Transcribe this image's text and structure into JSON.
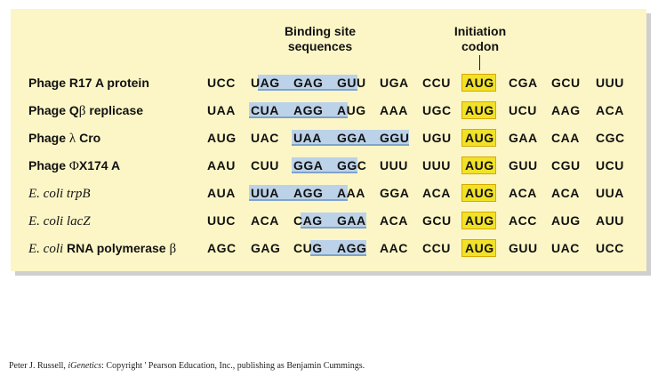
{
  "headers": {
    "binding_site": [
      "Binding site",
      "sequences"
    ],
    "initiation": [
      "Initiation",
      "codon"
    ]
  },
  "rows": [
    {
      "label_parts": [
        {
          "text": "Phage R17 A protein",
          "style": "bold"
        }
      ],
      "codons": [
        "UCC",
        "UAG",
        "GAG",
        "GUU",
        "UGA",
        "CCU",
        "AUG",
        "CGA",
        "GCU",
        "UUU"
      ],
      "binding": {
        "from_codon": 1,
        "from_char": 1,
        "to_codon": 3,
        "to_char": 2
      }
    },
    {
      "label_parts": [
        {
          "text": "Phage Q",
          "style": "bold"
        },
        {
          "text": "β",
          "style": "sym"
        },
        {
          "text": " replicase",
          "style": "bold"
        }
      ],
      "codons": [
        "UAA",
        "CUA",
        "AGG",
        "AUG",
        "AAA",
        "UGC",
        "AUG",
        "UCU",
        "AAG",
        "ACA"
      ],
      "binding": {
        "from_codon": 1,
        "from_char": 0,
        "to_codon": 3,
        "to_char": 1
      }
    },
    {
      "label_parts": [
        {
          "text": "Phage ",
          "style": "bold"
        },
        {
          "text": "λ",
          "style": "sym"
        },
        {
          "text": " Cro",
          "style": "bold"
        }
      ],
      "codons": [
        "AUG",
        "UAC",
        "UAA",
        "GGA",
        "GGU",
        "UGU",
        "AUG",
        "GAA",
        "CAA",
        "CGC"
      ],
      "binding": {
        "from_codon": 2,
        "from_char": 0,
        "to_codon": 4,
        "to_char": 3
      }
    },
    {
      "label_parts": [
        {
          "text": "Phage ",
          "style": "bold"
        },
        {
          "text": "Φ",
          "style": "sym"
        },
        {
          "text": "X174 A",
          "style": "bold"
        }
      ],
      "codons": [
        "AAU",
        "CUU",
        "GGA",
        "GGC",
        "UUU",
        "UUU",
        "AUG",
        "GUU",
        "CGU",
        "UCU"
      ],
      "binding": {
        "from_codon": 2,
        "from_char": 0,
        "to_codon": 3,
        "to_char": 2
      }
    },
    {
      "label_parts": [
        {
          "text": "E. coli trpB",
          "style": "ital"
        }
      ],
      "codons": [
        "AUA",
        "UUA",
        "AGG",
        "AAA",
        "GGA",
        "ACA",
        "AUG",
        "ACA",
        "ACA",
        "UUA"
      ],
      "binding": {
        "from_codon": 1,
        "from_char": 0,
        "to_codon": 3,
        "to_char": 1
      }
    },
    {
      "label_parts": [
        {
          "text": "E. coli lacZ",
          "style": "ital"
        }
      ],
      "codons": [
        "UUC",
        "ACA",
        "CAG",
        "GAA",
        "ACA",
        "GCU",
        "AUG",
        "ACC",
        "AUG",
        "AUU"
      ],
      "binding": {
        "from_codon": 2,
        "from_char": 1,
        "to_codon": 3,
        "to_char": 3
      }
    },
    {
      "label_parts": [
        {
          "text": "E. coli",
          "style": "ital"
        },
        {
          "text": "  RNA polymerase ",
          "style": "bold"
        },
        {
          "text": "β",
          "style": "sym"
        }
      ],
      "codons": [
        "AGC",
        "GAG",
        "CUG",
        "AGG",
        "AAC",
        "CCU",
        "AUG",
        "GUU",
        "UAC",
        "UCC"
      ],
      "binding": {
        "from_codon": 2,
        "from_char": 2,
        "to_codon": 3,
        "to_char": 3
      }
    }
  ],
  "initiation_codon_index": 6,
  "colors": {
    "panel": "#fcf6c6",
    "binding_site": "#bcd2e8",
    "initiation_codon": "#f2e227"
  },
  "credit": {
    "before": "Peter J. Russell, ",
    "title": "iGenetics",
    "after": ": Copyright ' Pearson Education, Inc., publishing as Benjamin Cummings."
  }
}
